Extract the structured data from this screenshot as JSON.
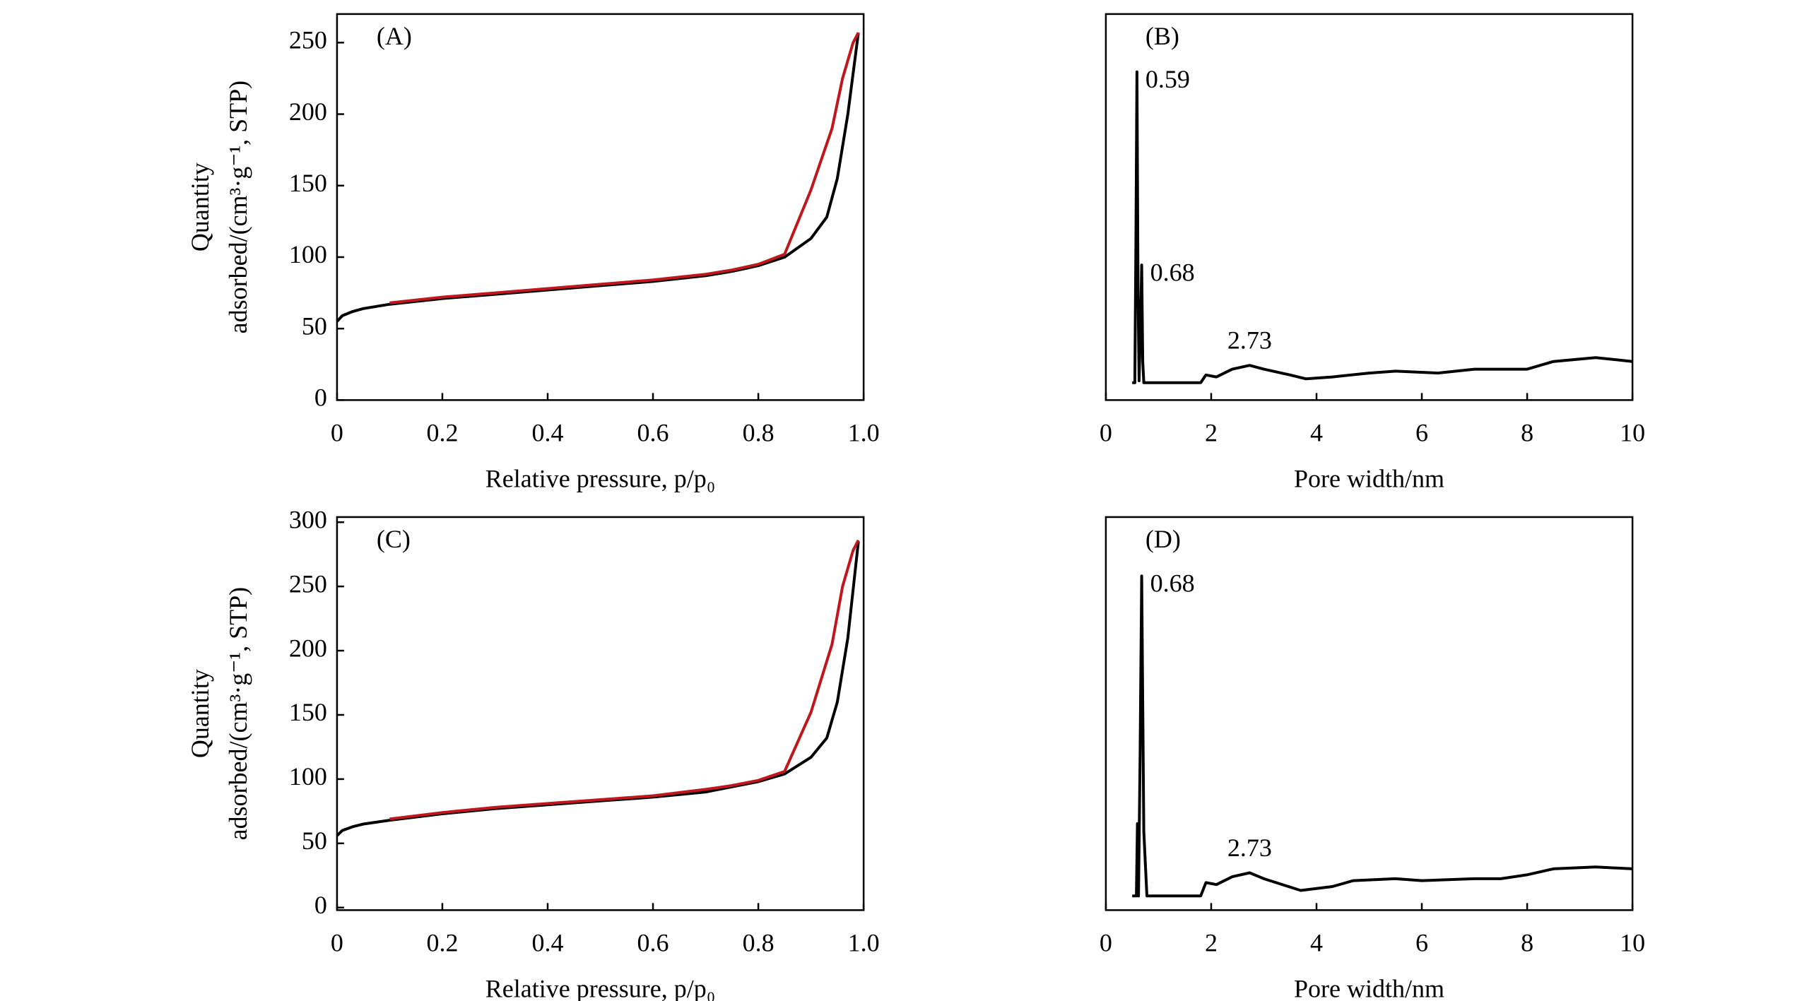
{
  "chart_data": [
    {
      "type": "line",
      "panel_label": "(A)",
      "x_label": "Relative pressure, p/p₀",
      "y_label": [
        "Quantity",
        "adsorbed/(cm³·g⁻¹, STP)"
      ],
      "xlim": [
        0,
        1
      ],
      "xticks": [
        0,
        0.2,
        0.4,
        0.6,
        0.8,
        {
          "value": 1,
          "label": "1.0"
        }
      ],
      "ylim": [
        0,
        270
      ],
      "yticks": [
        0,
        50,
        100,
        150,
        200,
        250
      ],
      "series": [
        {
          "color": "#000000",
          "x": [
            0,
            0.01,
            0.03,
            0.05,
            0.1,
            0.2,
            0.3,
            0.4,
            0.5,
            0.6,
            0.7,
            0.75,
            0.8,
            0.85,
            0.9,
            0.93,
            0.95,
            0.97,
            0.99
          ],
          "values": [
            55,
            59,
            62,
            64,
            67,
            71,
            74,
            77,
            80,
            83,
            87,
            90,
            94,
            100,
            113,
            128,
            155,
            200,
            257
          ]
        },
        {
          "color": "#c0161c",
          "x": [
            0.99,
            0.98,
            0.96,
            0.94,
            0.9,
            0.85,
            0.8,
            0.75,
            0.7,
            0.6,
            0.5,
            0.4,
            0.3,
            0.2,
            0.1
          ],
          "values": [
            257,
            250,
            225,
            190,
            147,
            102,
            95,
            91,
            88,
            84,
            81,
            78,
            75,
            72,
            68
          ]
        }
      ]
    },
    {
      "type": "line",
      "panel_label": "(B)",
      "x_label": "Pore width/nm",
      "xlim": [
        0,
        10
      ],
      "xticks": [
        0,
        2,
        4,
        6,
        8,
        10
      ],
      "ylim": [
        0,
        100
      ],
      "peak_labels": [
        0.59,
        0.68,
        2.73
      ],
      "series": [
        {
          "color": "#000000",
          "x": [
            0.5,
            0.55,
            0.57,
            0.59,
            0.61,
            0.63,
            0.66,
            0.68,
            0.7,
            0.72,
            0.75,
            1.8,
            1.9,
            2.1,
            2.4,
            2.73,
            3.0,
            3.5,
            3.8,
            4.3,
            5,
            5.5,
            6.3,
            7,
            8,
            8.5,
            9.3,
            10
          ],
          "values": [
            4.5,
            4.5,
            40,
            85,
            30,
            5,
            20,
            35,
            10,
            4.5,
            4.5,
            4.5,
            6.5,
            6,
            8,
            9,
            8,
            6.5,
            5.5,
            6,
            7,
            7.5,
            7,
            8,
            8,
            10,
            11,
            10
          ]
        }
      ]
    },
    {
      "type": "line",
      "panel_label": "(C)",
      "x_label": "Relative pressure, p/p₀",
      "y_label": [
        "Quantity",
        "adsorbed/(cm³·g⁻¹, STP)"
      ],
      "xlim": [
        0,
        1
      ],
      "xticks": [
        0,
        0.2,
        0.4,
        0.6,
        0.8,
        {
          "value": 1,
          "label": "1.0"
        }
      ],
      "ylim": [
        -2,
        304
      ],
      "yticks": [
        0,
        50,
        100,
        150,
        200,
        250,
        300
      ],
      "series": [
        {
          "color": "#000000",
          "x": [
            0,
            0.01,
            0.03,
            0.05,
            0.1,
            0.2,
            0.3,
            0.4,
            0.5,
            0.6,
            0.7,
            0.75,
            0.8,
            0.85,
            0.9,
            0.93,
            0.95,
            0.97,
            0.99
          ],
          "values": [
            56,
            60,
            63,
            65,
            68,
            73,
            77,
            80,
            83,
            86,
            90,
            94,
            98,
            104,
            117,
            132,
            160,
            210,
            285
          ]
        },
        {
          "color": "#c0161c",
          "x": [
            0.99,
            0.98,
            0.96,
            0.94,
            0.9,
            0.85,
            0.8,
            0.75,
            0.7,
            0.6,
            0.5,
            0.4,
            0.3,
            0.2,
            0.1
          ],
          "values": [
            286,
            278,
            250,
            205,
            152,
            106,
            99,
            95,
            92,
            87,
            84,
            81,
            78,
            74,
            69
          ]
        }
      ]
    },
    {
      "type": "line",
      "panel_label": "(D)",
      "x_label": "Pore width/nm",
      "xlim": [
        0,
        10
      ],
      "xticks": [
        0,
        2,
        4,
        6,
        8,
        10
      ],
      "ylim": [
        0,
        100
      ],
      "peak_labels": [
        0.68,
        2.73
      ],
      "series": [
        {
          "color": "#000000",
          "x": [
            0.5,
            0.58,
            0.6,
            0.62,
            0.65,
            0.68,
            0.72,
            0.78,
            1.8,
            1.9,
            2.1,
            2.4,
            2.73,
            3.0,
            3.7,
            4.3,
            4.7,
            5.5,
            6,
            7,
            7.5,
            8,
            8.5,
            9.3,
            10
          ],
          "values": [
            3.6,
            3.6,
            22,
            3.6,
            40,
            85,
            20,
            3.6,
            3.6,
            7,
            6.5,
            8.5,
            9.5,
            8,
            5,
            6,
            7.5,
            8,
            7.5,
            8,
            8,
            9,
            10.5,
            11,
            10.5
          ]
        }
      ]
    }
  ]
}
